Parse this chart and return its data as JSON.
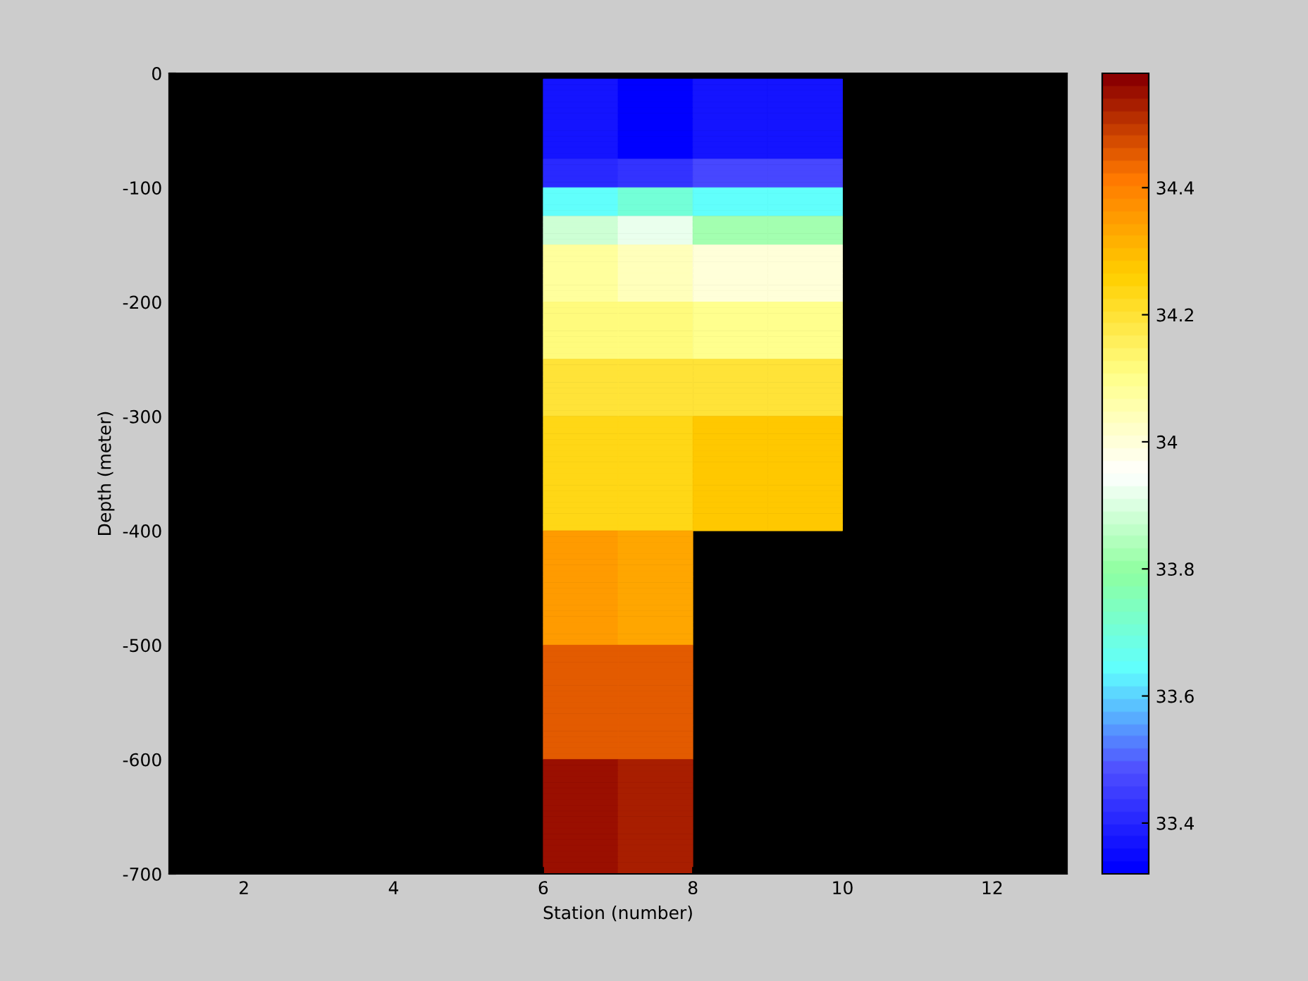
{
  "chart_data": {
    "type": "heatmap",
    "xlabel": "Station (number)",
    "ylabel": "Depth (meter)",
    "x": [
      6.5,
      7.5,
      8.5,
      9.5
    ],
    "y": [
      -7.5,
      -12.5,
      -17.5,
      -22.5,
      -27.5,
      -32.5,
      -37.5,
      -42.5,
      -47.5,
      -52.5,
      -57.5,
      -62.5,
      -67.5,
      -72.5,
      -77.5,
      -82.5,
      -87.5,
      -92.5,
      -97.5,
      -102.5,
      -107.5,
      -112.5,
      -117.5,
      -122.5,
      -127.5,
      -132.5,
      -137.5,
      -142.5,
      -147.5,
      -152.5,
      -157.5,
      -162.5,
      -167.5,
      -172.5,
      -177.5,
      -182.5,
      -187.5,
      -192.5,
      -197.5,
      -202.5,
      -207.5,
      -212.5,
      -217.5,
      -222.5,
      -227.5,
      -232.5,
      -237.5,
      -242.5,
      -247.5,
      -252.5,
      -257.5,
      -262.5,
      -267.5,
      -272.5,
      -277.5,
      -282.5,
      -287.5,
      -292.5,
      -297.5,
      -302.5,
      -307.5,
      -312.5,
      -317.5,
      -322.5,
      -327.5,
      -332.5,
      -337.5,
      -342.5,
      -347.5,
      -352.5,
      -357.5,
      -362.5,
      -367.5,
      -372.5,
      -377.5,
      -382.5,
      -387.5,
      -392.5,
      -397.5,
      -402.5,
      -407.5,
      -412.5,
      -417.5,
      -422.5,
      -427.5,
      -432.5,
      -437.5,
      -442.5,
      -447.5,
      -452.5,
      -457.5,
      -462.5,
      -467.5,
      -472.5,
      -477.5,
      -482.5,
      -487.5,
      -492.5,
      -497.5,
      -502.5,
      -507.5,
      -512.5,
      -517.5,
      -522.5,
      -527.5,
      -532.5,
      -537.5,
      -542.5,
      -547.5,
      -552.5,
      -557.5,
      -562.5,
      -567.5,
      -572.5,
      -577.5,
      -582.5,
      -587.5,
      -592.5,
      -597.5,
      -602.5,
      -607.5,
      -612.5,
      -617.5,
      -622.5,
      -627.5,
      -632.5,
      -637.5,
      -642.5,
      -647.5,
      -652.5,
      -657.5,
      -662.5,
      -667.5,
      -672.5,
      -677.5,
      -682.5,
      -687.5,
      -692.5,
      -697.5
    ],
    "cells": [
      [
        33.37,
        33.32,
        33.36,
        33.36
      ],
      [
        33.37,
        33.32,
        33.36,
        33.36
      ],
      [
        33.37,
        33.32,
        33.36,
        33.36
      ],
      [
        33.37,
        33.32,
        33.36,
        33.36
      ],
      [
        33.37,
        33.32,
        33.36,
        33.36
      ],
      [
        33.37,
        33.32,
        33.37,
        33.37
      ],
      [
        33.37,
        33.32,
        33.37,
        33.37
      ],
      [
        33.37,
        33.32,
        33.37,
        33.37
      ],
      [
        33.37,
        33.32,
        33.37,
        33.37
      ],
      [
        33.36,
        33.32,
        33.36,
        33.36
      ],
      [
        33.36,
        33.32,
        33.36,
        33.36
      ],
      [
        33.36,
        33.32,
        33.36,
        33.36
      ],
      [
        33.36,
        33.32,
        33.36,
        33.36
      ],
      [
        33.36,
        33.32,
        33.36,
        33.36
      ],
      [
        33.41,
        33.43,
        33.46,
        33.46
      ],
      [
        33.41,
        33.43,
        33.46,
        33.46
      ],
      [
        33.41,
        33.43,
        33.46,
        33.46
      ],
      [
        33.41,
        33.43,
        33.46,
        33.46
      ],
      [
        33.41,
        33.43,
        33.46,
        33.46
      ],
      [
        33.65,
        33.7,
        33.65,
        33.65
      ],
      [
        33.65,
        33.7,
        33.65,
        33.65
      ],
      [
        33.65,
        33.7,
        33.65,
        33.65
      ],
      [
        33.65,
        33.7,
        33.65,
        33.65
      ],
      [
        33.65,
        33.7,
        33.65,
        33.65
      ],
      [
        33.88,
        33.92,
        33.83,
        33.83
      ],
      [
        33.88,
        33.92,
        33.83,
        33.83
      ],
      [
        33.88,
        33.92,
        33.83,
        33.83
      ],
      [
        33.88,
        33.92,
        33.83,
        33.83
      ],
      [
        33.88,
        33.92,
        33.83,
        33.83
      ],
      [
        34.07,
        34.04,
        33.99,
        33.99
      ],
      [
        34.07,
        34.04,
        33.99,
        33.99
      ],
      [
        34.07,
        34.04,
        33.99,
        33.99
      ],
      [
        34.07,
        34.04,
        33.99,
        33.99
      ],
      [
        34.07,
        34.04,
        33.99,
        33.99
      ],
      [
        34.07,
        34.04,
        33.99,
        33.99
      ],
      [
        34.07,
        34.04,
        33.99,
        33.99
      ],
      [
        34.07,
        34.04,
        33.99,
        33.99
      ],
      [
        34.07,
        34.04,
        33.99,
        33.99
      ],
      [
        34.07,
        34.04,
        33.99,
        33.99
      ],
      [
        34.12,
        34.12,
        34.09,
        34.09
      ],
      [
        34.12,
        34.12,
        34.09,
        34.09
      ],
      [
        34.12,
        34.12,
        34.09,
        34.09
      ],
      [
        34.12,
        34.12,
        34.09,
        34.09
      ],
      [
        34.12,
        34.12,
        34.09,
        34.09
      ],
      [
        34.12,
        34.12,
        34.09,
        34.09
      ],
      [
        34.12,
        34.12,
        34.09,
        34.09
      ],
      [
        34.12,
        34.12,
        34.09,
        34.09
      ],
      [
        34.12,
        34.12,
        34.09,
        34.09
      ],
      [
        34.12,
        34.12,
        34.09,
        34.09
      ],
      [
        34.19,
        34.19,
        34.19,
        34.19
      ],
      [
        34.19,
        34.19,
        34.19,
        34.19
      ],
      [
        34.19,
        34.19,
        34.19,
        34.19
      ],
      [
        34.19,
        34.19,
        34.19,
        34.19
      ],
      [
        34.19,
        34.19,
        34.19,
        34.19
      ],
      [
        34.19,
        34.19,
        34.19,
        34.19
      ],
      [
        34.19,
        34.19,
        34.19,
        34.19
      ],
      [
        34.19,
        34.19,
        34.19,
        34.19
      ],
      [
        34.19,
        34.19,
        34.19,
        34.19
      ],
      [
        34.19,
        34.19,
        34.19,
        34.19
      ],
      [
        34.23,
        34.23,
        34.28,
        34.28
      ],
      [
        34.23,
        34.23,
        34.28,
        34.28
      ],
      [
        34.23,
        34.23,
        34.28,
        34.28
      ],
      [
        34.23,
        34.23,
        34.28,
        34.28
      ],
      [
        34.23,
        34.23,
        34.28,
        34.28
      ],
      [
        34.23,
        34.23,
        34.28,
        34.28
      ],
      [
        34.23,
        34.23,
        34.28,
        34.28
      ],
      [
        34.23,
        34.23,
        34.28,
        34.28
      ],
      [
        34.23,
        34.23,
        34.28,
        34.28
      ],
      [
        34.23,
        34.23,
        34.28,
        34.28
      ],
      [
        34.23,
        34.23,
        34.28,
        34.28
      ],
      [
        34.23,
        34.23,
        34.28,
        34.28
      ],
      [
        34.23,
        34.23,
        34.28,
        34.28
      ],
      [
        34.23,
        34.23,
        34.28,
        34.28
      ],
      [
        34.23,
        34.23,
        34.28,
        34.28
      ],
      [
        34.23,
        34.23,
        34.28,
        34.28
      ],
      [
        34.23,
        34.23,
        34.28,
        34.28
      ],
      [
        34.23,
        34.23,
        34.28,
        34.28
      ],
      [
        34.23,
        34.23,
        34.28,
        34.28
      ],
      [
        34.23,
        34.23,
        34.28,
        34.28
      ],
      [
        34.36,
        34.34,
        null,
        null
      ],
      [
        34.36,
        34.34,
        null,
        null
      ],
      [
        34.36,
        34.34,
        null,
        null
      ],
      [
        34.36,
        34.34,
        null,
        null
      ],
      [
        34.36,
        34.34,
        null,
        null
      ],
      [
        34.36,
        34.34,
        null,
        null
      ],
      [
        34.36,
        34.34,
        null,
        null
      ],
      [
        34.36,
        34.34,
        null,
        null
      ],
      [
        34.36,
        34.34,
        null,
        null
      ],
      [
        34.36,
        34.34,
        null,
        null
      ],
      [
        34.36,
        34.34,
        null,
        null
      ],
      [
        34.36,
        34.34,
        null,
        null
      ],
      [
        34.36,
        34.34,
        null,
        null
      ],
      [
        34.36,
        34.34,
        null,
        null
      ],
      [
        34.36,
        34.34,
        null,
        null
      ],
      [
        34.36,
        34.34,
        null,
        null
      ],
      [
        34.36,
        34.34,
        null,
        null
      ],
      [
        34.36,
        34.34,
        null,
        null
      ],
      [
        34.36,
        34.34,
        null,
        null
      ],
      [
        34.36,
        34.34,
        null,
        null
      ],
      [
        34.45,
        34.45,
        null,
        null
      ],
      [
        34.45,
        34.45,
        null,
        null
      ],
      [
        34.45,
        34.45,
        null,
        null
      ],
      [
        34.45,
        34.45,
        null,
        null
      ],
      [
        34.45,
        34.45,
        null,
        null
      ],
      [
        34.45,
        34.45,
        null,
        null
      ],
      [
        34.45,
        34.45,
        null,
        null
      ],
      [
        34.45,
        34.45,
        null,
        null
      ],
      [
        34.45,
        34.45,
        null,
        null
      ],
      [
        34.45,
        34.45,
        null,
        null
      ],
      [
        34.45,
        34.45,
        null,
        null
      ],
      [
        34.45,
        34.45,
        null,
        null
      ],
      [
        34.45,
        34.45,
        null,
        null
      ],
      [
        34.45,
        34.45,
        null,
        null
      ],
      [
        34.45,
        34.45,
        null,
        null
      ],
      [
        34.45,
        34.45,
        null,
        null
      ],
      [
        34.45,
        34.45,
        null,
        null
      ],
      [
        34.45,
        34.45,
        null,
        null
      ],
      [
        34.45,
        34.45,
        null,
        null
      ],
      [
        34.45,
        34.45,
        null,
        null
      ],
      [
        34.56,
        34.54,
        null,
        null
      ],
      [
        34.56,
        34.54,
        null,
        null
      ],
      [
        34.56,
        34.54,
        null,
        null
      ],
      [
        34.56,
        34.54,
        null,
        null
      ],
      [
        34.56,
        34.54,
        null,
        null
      ],
      [
        34.56,
        34.54,
        null,
        null
      ],
      [
        34.56,
        34.54,
        null,
        null
      ],
      [
        34.56,
        34.54,
        null,
        null
      ],
      [
        34.56,
        34.54,
        null,
        null
      ],
      [
        34.56,
        34.54,
        null,
        null
      ],
      [
        34.56,
        34.54,
        null,
        null
      ],
      [
        34.56,
        34.54,
        null,
        null
      ],
      [
        34.56,
        34.54,
        null,
        null
      ],
      [
        34.56,
        34.54,
        null,
        null
      ],
      [
        34.56,
        34.54,
        null,
        null
      ],
      [
        34.56,
        34.54,
        null,
        null
      ],
      [
        34.56,
        34.54,
        null,
        null
      ],
      [
        34.56,
        34.54,
        null,
        null
      ],
      [
        34.56,
        34.54,
        null,
        null
      ],
      [
        34.56,
        34.54,
        null,
        null
      ]
    ],
    "colors": [
      "#0000ff",
      "#5050ff",
      "#5fffff",
      "#8fff9f",
      "#ffffff",
      "#ffff88",
      "#ffd000",
      "#ff7800",
      "#8b0000"
    ],
    "clim": [
      33.32,
      34.58
    ],
    "cticks": [
      33.4,
      33.6,
      33.8,
      34,
      34.2,
      34.4
    ],
    "xlim": [
      1,
      13
    ],
    "xticks": [
      2,
      4,
      6,
      8,
      10,
      12
    ],
    "ylim": [
      -700,
      0
    ],
    "yticks": [
      -700,
      -600,
      -500,
      -400,
      -300,
      -200,
      -100,
      0
    ],
    "grid": false
  }
}
